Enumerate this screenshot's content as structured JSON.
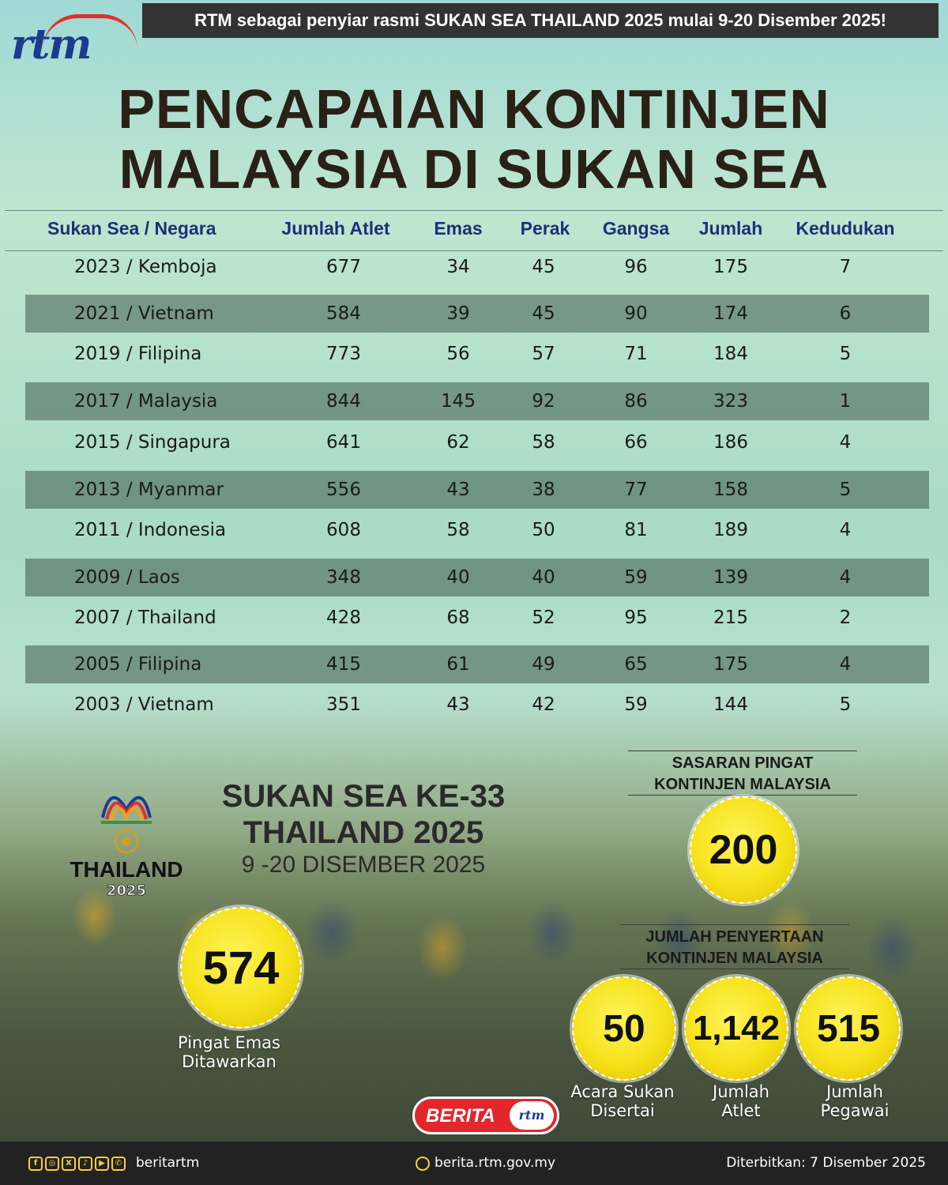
{
  "banner": "RTM sebagai penyiar rasmi SUKAN SEA THAILAND 2025 mulai 9-20 Disember 2025!",
  "logo_text": "rtm",
  "title_line1": "PENCAPAIAN KONTINJEN",
  "title_line2": "MALAYSIA DI SUKAN SEA",
  "table": {
    "headers": [
      "Sukan Sea / Negara",
      "Jumlah Atlet",
      "Emas",
      "Perak",
      "Gangsa",
      "Jumlah",
      "Kedudukan"
    ],
    "rows": [
      [
        "2023 / Kemboja",
        "677",
        "34",
        "45",
        "96",
        "175",
        "7"
      ],
      [
        "2021 / Vietnam",
        "584",
        "39",
        "45",
        "90",
        "174",
        "6"
      ],
      [
        "2019 / Filipina",
        "773",
        "56",
        "57",
        "71",
        "184",
        "5"
      ],
      [
        "2017 / Malaysia",
        "844",
        "145",
        "92",
        "86",
        "323",
        "1"
      ],
      [
        "2015 / Singapura",
        "641",
        "62",
        "58",
        "66",
        "186",
        "4"
      ],
      [
        "2013 / Myanmar",
        "556",
        "43",
        "38",
        "77",
        "158",
        "5"
      ],
      [
        "2011 / Indonesia",
        "608",
        "58",
        "50",
        "81",
        "189",
        "4"
      ],
      [
        "2009 / Laos",
        "348",
        "40",
        "40",
        "59",
        "139",
        "4"
      ],
      [
        "2007 / Thailand",
        "428",
        "68",
        "52",
        "95",
        "215",
        "2"
      ],
      [
        "2005 / Filipina",
        "415",
        "61",
        "49",
        "65",
        "175",
        "4"
      ],
      [
        "2003 / Vietnam",
        "351",
        "43",
        "42",
        "59",
        "144",
        "5"
      ]
    ]
  },
  "games_logo": {
    "name": "THAILAND",
    "year": "2025"
  },
  "event": {
    "title_line1": "SUKAN SEA KE-33",
    "title_line2": "THAILAND 2025",
    "dates": "9 -20 DISEMBER 2025"
  },
  "gold_offered": {
    "value": "574",
    "caption_line1": "Pingat Emas",
    "caption_line2": "Ditawarkan"
  },
  "target": {
    "heading_line1": "SASARAN PINGAT",
    "heading_line2": "KONTINJEN MALAYSIA",
    "value": "200"
  },
  "participation": {
    "heading_line1": "JUMLAH PENYERTAAN",
    "heading_line2": "KONTINJEN MALAYSIA",
    "items": [
      {
        "value": "50",
        "caption_line1": "Acara Sukan",
        "caption_line2": "Disertai"
      },
      {
        "value": "1,142",
        "caption_line1": "Jumlah",
        "caption_line2": "Atlet"
      },
      {
        "value": "515",
        "caption_line1": "Jumlah",
        "caption_line2": "Pegawai"
      }
    ]
  },
  "berita_logo": {
    "text": "BERITA",
    "mark": "rtm"
  },
  "footer": {
    "social_icons": [
      "facebook-icon",
      "instagram-icon",
      "x-icon",
      "tiktok-icon",
      "youtube-icon",
      "whatsapp-icon"
    ],
    "handle": "beritartm",
    "site": "berita.rtm.gov.my",
    "published": "Diterbitkan: 7 Disember 2025"
  },
  "colors": {
    "header_text": "#1d2f7a",
    "badge": "#f6e21a",
    "footer_bg": "#222222",
    "banner_bg": "#333333"
  }
}
